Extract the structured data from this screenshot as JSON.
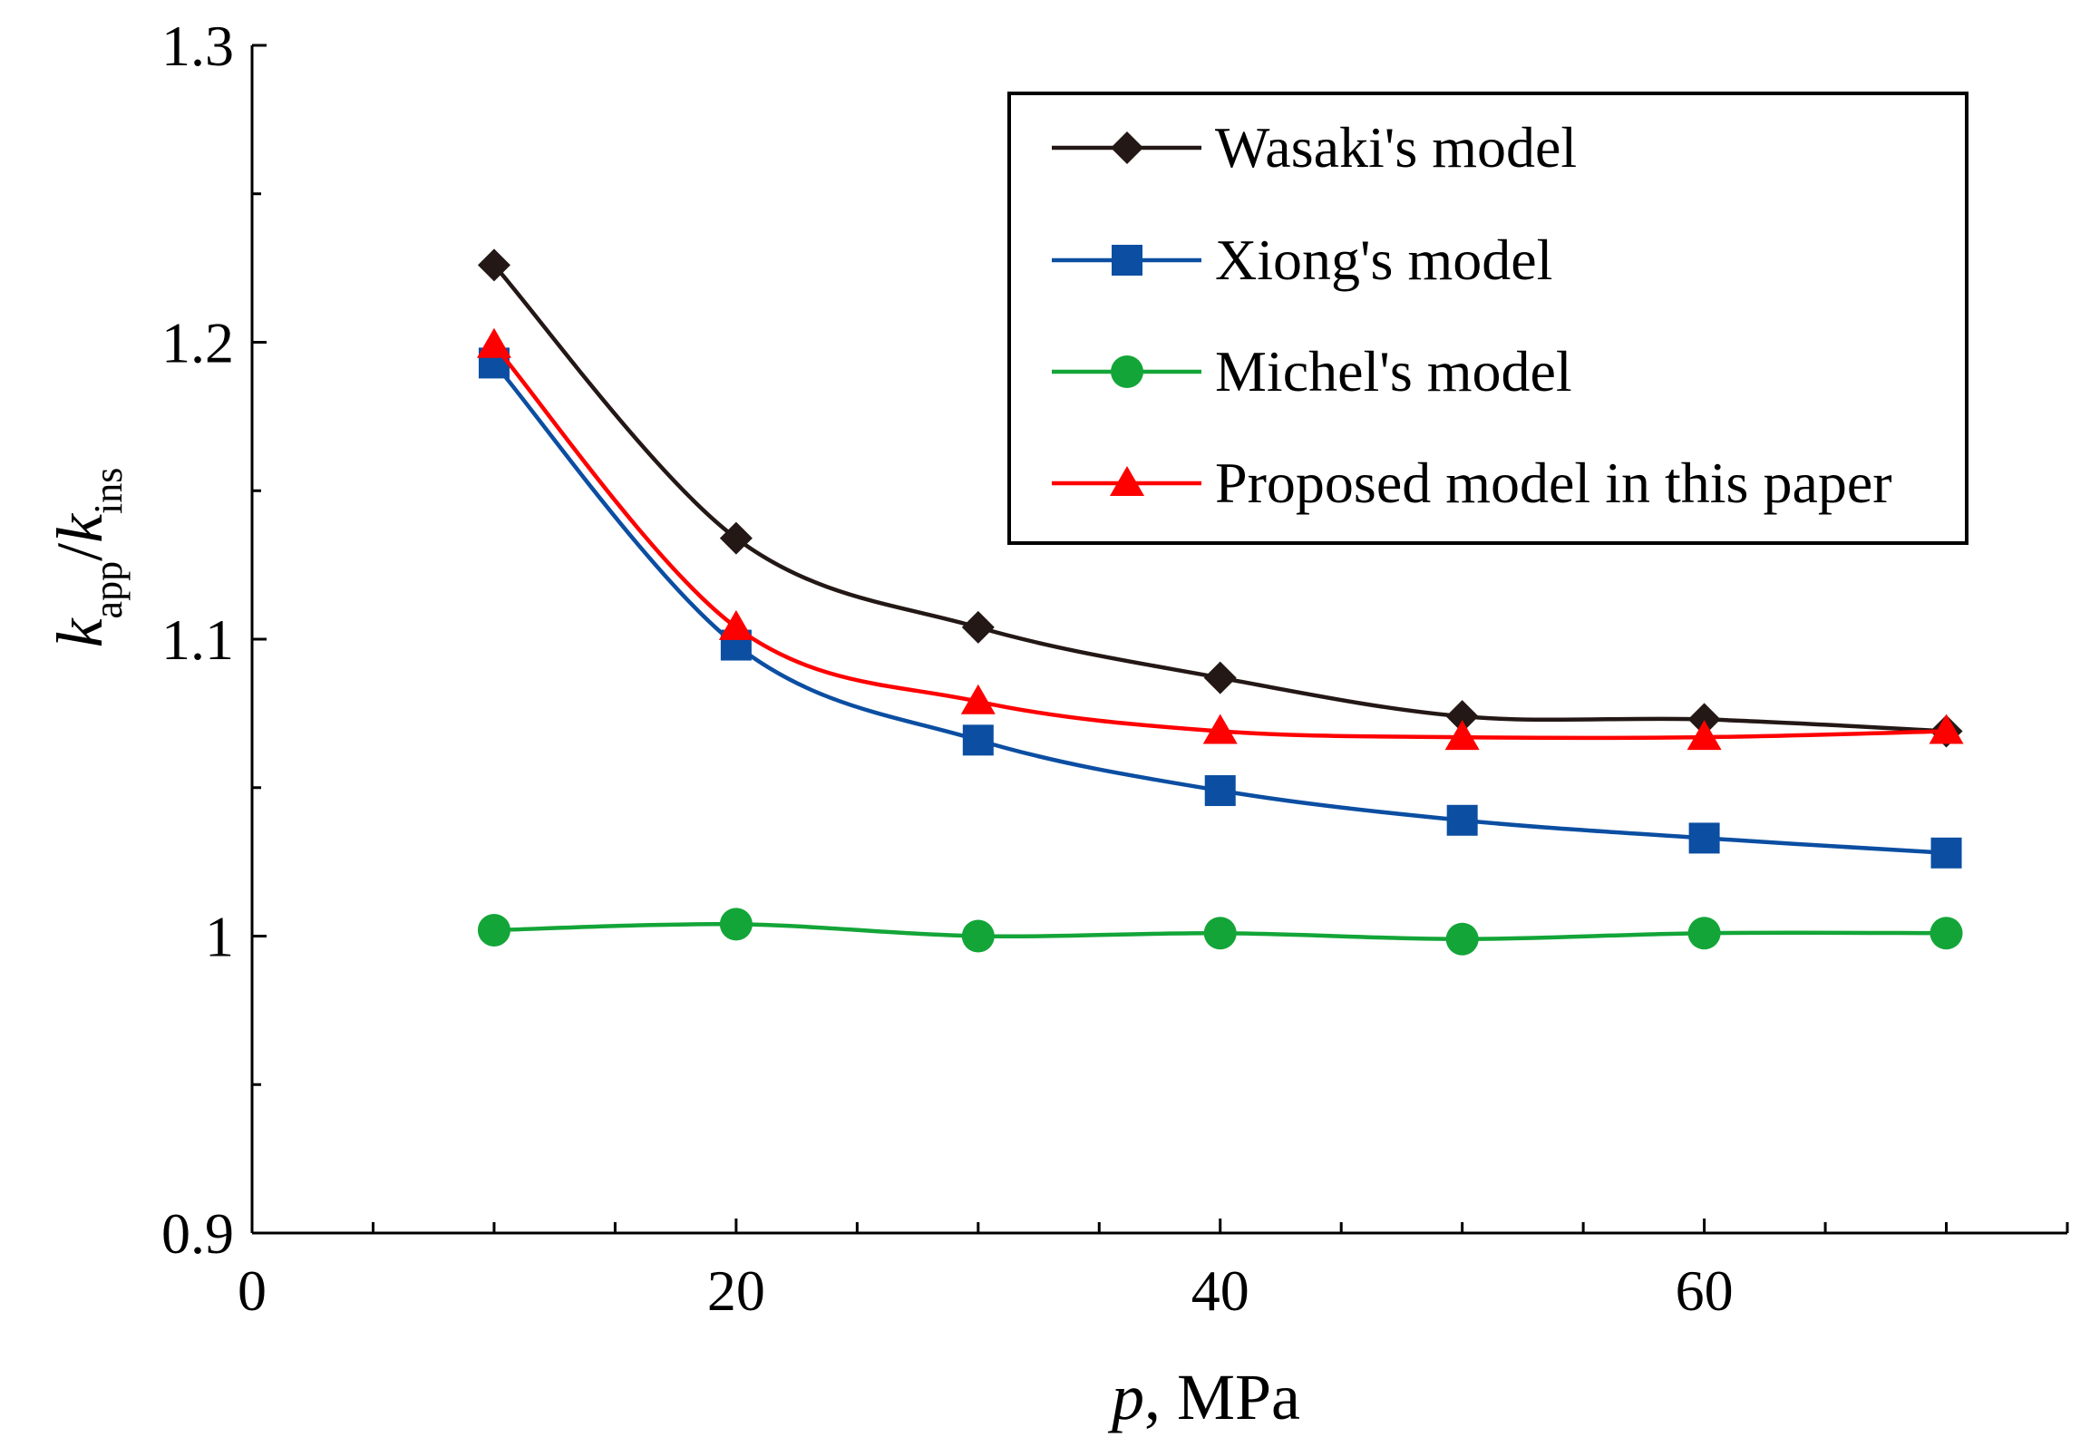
{
  "chart_data": {
    "type": "line",
    "title": "",
    "xlabel": {
      "var": "p",
      "rest": ", MPa"
    },
    "ylabel": {
      "k1": "k",
      "sub1": "app",
      "slash": "/",
      "k2": "k",
      "sub2": "ins"
    },
    "xlim": [
      0,
      75
    ],
    "ylim": [
      0.9,
      1.3
    ],
    "x_ticks": [
      0,
      20,
      40,
      60
    ],
    "x_minor_ticks": [
      5,
      10,
      15,
      25,
      30,
      35,
      45,
      50,
      55,
      65,
      70,
      75
    ],
    "y_ticks": [
      {
        "value": 0.9,
        "label": "0.9"
      },
      {
        "value": 1.0,
        "label": "1"
      },
      {
        "value": 1.1,
        "label": "1.1"
      },
      {
        "value": 1.2,
        "label": "1.2"
      },
      {
        "value": 1.3,
        "label": "1.3"
      }
    ],
    "y_minor_ticks": [
      0.95,
      1.05,
      1.15,
      1.25
    ],
    "grid": false,
    "legend_position": "top-right",
    "x": [
      10,
      20,
      30,
      40,
      50,
      60,
      70
    ],
    "series": [
      {
        "name": "Wasaki's model",
        "color": "#231815",
        "marker": "diamond",
        "values": [
          1.226,
          1.134,
          1.104,
          1.087,
          1.074,
          1.073,
          1.069
        ]
      },
      {
        "name": "Xiong's model",
        "color": "#0b4ea2",
        "marker": "square",
        "values": [
          1.193,
          1.098,
          1.066,
          1.049,
          1.039,
          1.033,
          1.028
        ]
      },
      {
        "name": "Michel's model",
        "color": "#13a538",
        "marker": "circle",
        "values": [
          1.002,
          1.004,
          1.0,
          1.001,
          0.999,
          1.001,
          1.001
        ]
      },
      {
        "name": "Proposed model in this paper",
        "color": "#ff0000",
        "marker": "triangle",
        "values": [
          1.199,
          1.104,
          1.079,
          1.069,
          1.067,
          1.067,
          1.069
        ]
      }
    ]
  }
}
